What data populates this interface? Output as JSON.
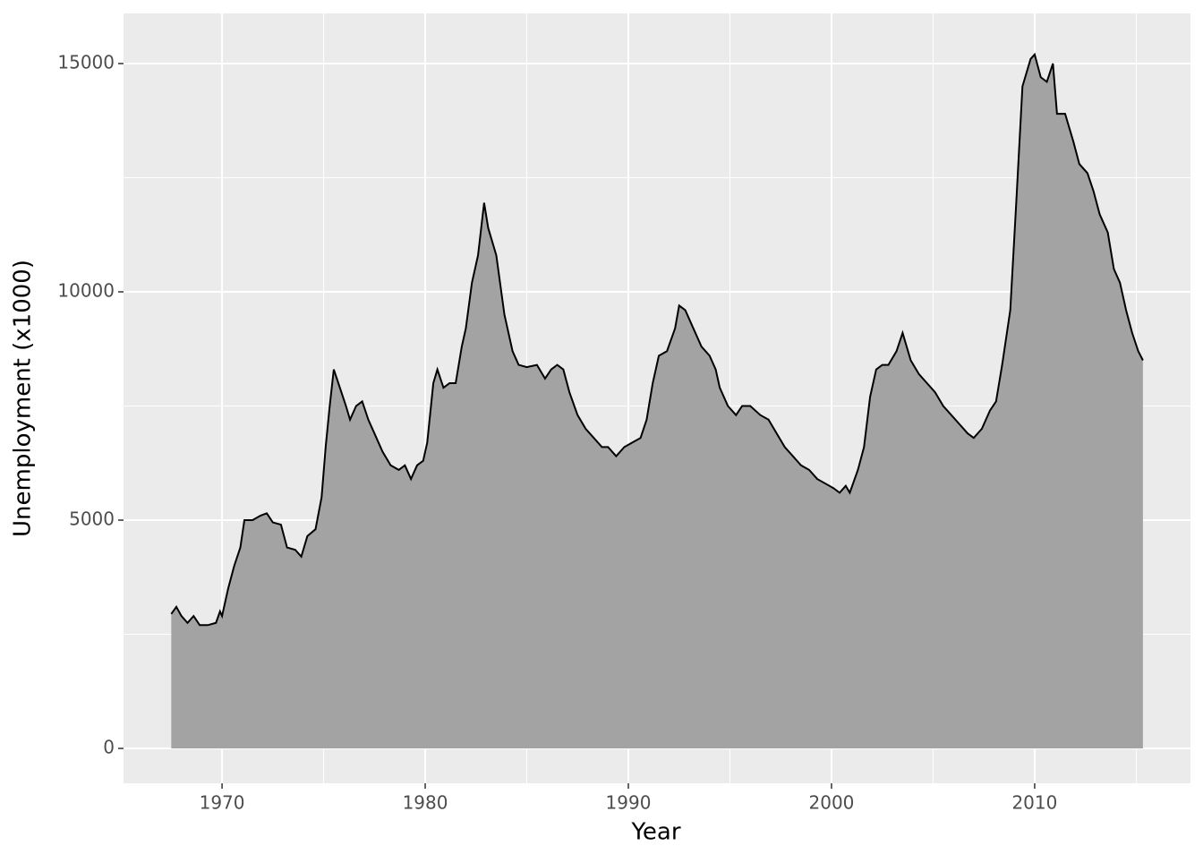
{
  "chart_data": {
    "type": "area",
    "x_label": "Year",
    "y_label": "Unemployment (x1000)",
    "x": [
      1967.5,
      1967.75,
      1968.0,
      1968.3,
      1968.6,
      1968.9,
      1969.3,
      1969.7,
      1969.9,
      1970.0,
      1970.3,
      1970.6,
      1970.9,
      1971.1,
      1971.5,
      1971.9,
      1972.2,
      1972.5,
      1972.9,
      1973.2,
      1973.6,
      1973.9,
      1974.2,
      1974.6,
      1974.9,
      1975.1,
      1975.3,
      1975.5,
      1975.8,
      1976.1,
      1976.3,
      1976.6,
      1976.9,
      1977.2,
      1977.5,
      1977.9,
      1978.3,
      1978.7,
      1979.0,
      1979.3,
      1979.6,
      1979.9,
      1980.1,
      1980.4,
      1980.6,
      1980.9,
      1981.2,
      1981.5,
      1981.8,
      1982.0,
      1982.3,
      1982.6,
      1982.9,
      1983.1,
      1983.5,
      1983.9,
      1984.3,
      1984.6,
      1985.0,
      1985.5,
      1985.9,
      1986.2,
      1986.5,
      1986.8,
      1987.1,
      1987.5,
      1987.9,
      1988.3,
      1988.7,
      1989.0,
      1989.4,
      1989.8,
      1990.2,
      1990.6,
      1990.9,
      1991.2,
      1991.5,
      1991.9,
      1992.3,
      1992.5,
      1992.8,
      1993.2,
      1993.6,
      1994.0,
      1994.3,
      1994.5,
      1994.9,
      1995.3,
      1995.6,
      1996.0,
      1996.5,
      1996.9,
      1997.3,
      1997.7,
      1998.1,
      1998.5,
      1998.9,
      1999.3,
      1999.7,
      2000.1,
      2000.4,
      2000.7,
      2000.9,
      2001.3,
      2001.6,
      2001.9,
      2002.2,
      2002.5,
      2002.8,
      2003.2,
      2003.5,
      2003.9,
      2004.3,
      2004.7,
      2005.1,
      2005.5,
      2005.9,
      2006.3,
      2006.7,
      2007.0,
      2007.4,
      2007.8,
      2008.1,
      2008.4,
      2008.8,
      2009.1,
      2009.4,
      2009.8,
      2010.0,
      2010.3,
      2010.6,
      2010.9,
      2011.1,
      2011.5,
      2011.9,
      2012.2,
      2012.6,
      2012.9,
      2013.2,
      2013.6,
      2013.9,
      2014.2,
      2014.5,
      2014.8,
      2015.1,
      2015.33
    ],
    "values": [
      2944,
      3100,
      2900,
      2750,
      2900,
      2700,
      2700,
      2750,
      3000,
      2900,
      3500,
      4000,
      4400,
      5000,
      5000,
      5100,
      5150,
      4950,
      4900,
      4400,
      4350,
      4200,
      4650,
      4800,
      5500,
      6600,
      7500,
      8300,
      7900,
      7500,
      7200,
      7500,
      7600,
      7200,
      6900,
      6500,
      6200,
      6100,
      6200,
      5900,
      6200,
      6300,
      6700,
      8000,
      8300,
      7900,
      8000,
      8000,
      8800,
      9200,
      10200,
      10800,
      11950,
      11400,
      10800,
      9500,
      8700,
      8400,
      8350,
      8400,
      8100,
      8300,
      8400,
      8300,
      7800,
      7300,
      7000,
      6800,
      6600,
      6600,
      6400,
      6600,
      6700,
      6800,
      7200,
      8000,
      8600,
      8700,
      9200,
      9700,
      9600,
      9200,
      8800,
      8600,
      8300,
      7900,
      7500,
      7300,
      7500,
      7500,
      7300,
      7200,
      6900,
      6600,
      6400,
      6200,
      6100,
      5900,
      5800,
      5700,
      5600,
      5750,
      5600,
      6100,
      6600,
      7700,
      8300,
      8400,
      8400,
      8700,
      9100,
      8500,
      8200,
      8000,
      7800,
      7500,
      7300,
      7100,
      6900,
      6800,
      7000,
      7400,
      7600,
      8400,
      9600,
      12000,
      14500,
      15100,
      15200,
      14700,
      14600,
      15000,
      13900,
      13900,
      13300,
      12800,
      12600,
      12200,
      11700,
      11300,
      10500,
      10200,
      9600,
      9100,
      8700,
      8500
    ],
    "fill_color": "#a3a3a3",
    "line_color": "#000000",
    "xlim": [
      1965.15,
      2017.67
    ],
    "ylim": [
      -765,
      16098
    ],
    "xticks": [
      1970,
      1980,
      1990,
      2000,
      2010
    ],
    "yticks": [
      0,
      5000,
      10000,
      15000
    ],
    "x_minor_grid": [
      1965,
      1975,
      1985,
      1995,
      2005,
      2015
    ],
    "y_minor_grid": [
      2500,
      7500,
      12500
    ],
    "grid": true
  }
}
